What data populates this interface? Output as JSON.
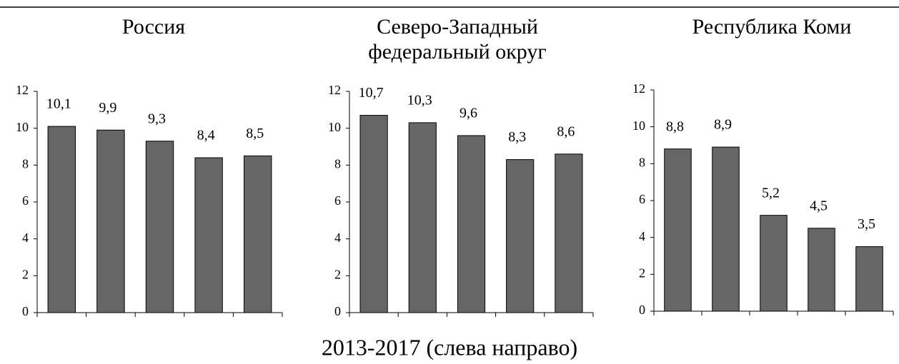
{
  "chart_data": [
    {
      "type": "bar",
      "title": [
        "Россия"
      ],
      "categories": [
        null,
        null,
        null,
        null,
        null
      ],
      "values": [
        10.1,
        9.9,
        9.3,
        8.4,
        8.5
      ],
      "value_labels": [
        "10,1",
        "9,9",
        "9,3",
        "8,4",
        "8,5"
      ],
      "color": "#666666",
      "ylim": [
        0,
        12
      ],
      "yticks": [
        0,
        2,
        4,
        6,
        8,
        10,
        12
      ],
      "grid": false
    },
    {
      "type": "bar",
      "title": [
        "Северо-Западный",
        "федеральный округ"
      ],
      "categories": [
        null,
        null,
        null,
        null,
        null
      ],
      "values": [
        10.7,
        10.3,
        9.6,
        8.3,
        8.6
      ],
      "value_labels": [
        "10,7",
        "10,3",
        "9,6",
        "8,3",
        "8,6"
      ],
      "color": "#666666",
      "ylim": [
        0,
        12
      ],
      "yticks": [
        0,
        2,
        4,
        6,
        8,
        10,
        12
      ],
      "grid": false
    },
    {
      "type": "bar",
      "title": [
        "Республика Коми"
      ],
      "categories": [
        null,
        null,
        null,
        null,
        null
      ],
      "values": [
        8.8,
        8.9,
        5.2,
        4.5,
        3.5
      ],
      "value_labels": [
        "8,8",
        "8,9",
        "5,2",
        "4,5",
        "3,5"
      ],
      "color": "#666666",
      "ylim": [
        0,
        12
      ],
      "yticks": [
        0,
        2,
        4,
        6,
        8,
        10,
        12
      ],
      "grid": false
    }
  ],
  "caption": "2013-2017 (слева направо)"
}
